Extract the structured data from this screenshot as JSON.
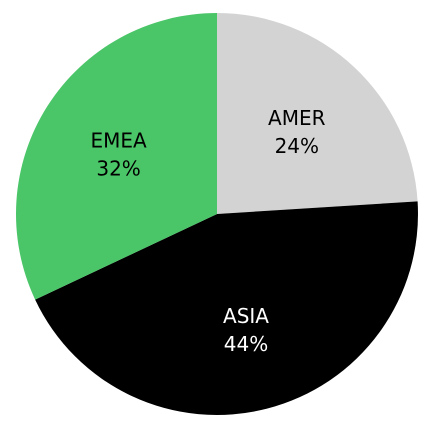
{
  "chart_data": {
    "type": "pie",
    "title": "",
    "slices": [
      {
        "label": "AMER",
        "value": 24,
        "value_label": "24%",
        "color": "#d3d3d3",
        "text_color": "#000000"
      },
      {
        "label": "ASIA",
        "value": 44,
        "value_label": "44%",
        "color": "#000000",
        "text_color": "#ffffff"
      },
      {
        "label": "EMEA",
        "value": 32,
        "value_label": "32%",
        "color": "#4ac568",
        "text_color": "#000000"
      }
    ],
    "start_angle_deg": 0,
    "direction": "clockwise",
    "legend": "none"
  }
}
